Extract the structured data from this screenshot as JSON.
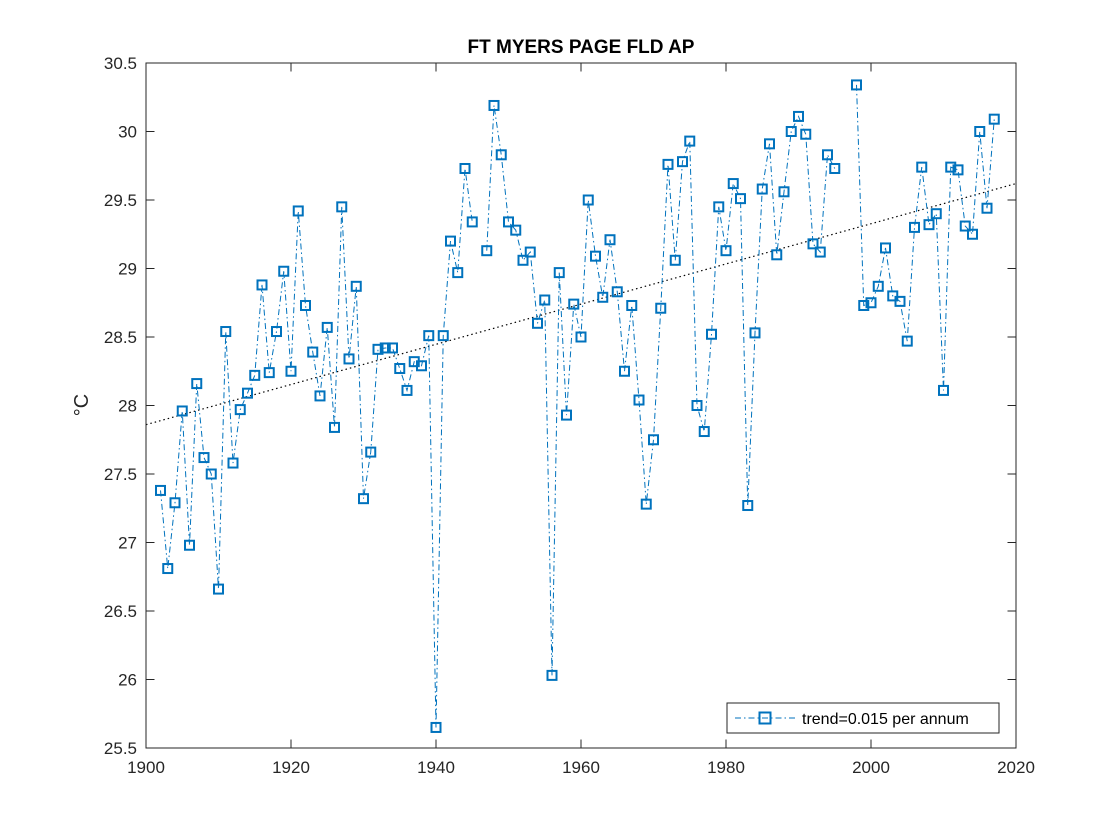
{
  "chart_data": {
    "type": "line",
    "title": "FT MYERS PAGE FLD AP",
    "xlabel": "",
    "ylabel": "°C",
    "xlim": [
      1900,
      2020
    ],
    "ylim": [
      25.5,
      30.5
    ],
    "xticks": [
      1900,
      1920,
      1940,
      1960,
      1980,
      2000,
      2020
    ],
    "yticks": [
      25.5,
      26,
      26.5,
      27,
      27.5,
      28,
      28.5,
      29,
      29.5,
      30,
      30.5
    ],
    "xtick_labels": [
      "1900",
      "1920",
      "1940",
      "1960",
      "1980",
      "2000",
      "2020"
    ],
    "ytick_labels": [
      "25.5",
      "26",
      "26.5",
      "27",
      "27.5",
      "28",
      "28.5",
      "29",
      "29.5",
      "30",
      "30.5"
    ],
    "grid": false,
    "legend_location": "bottom-right",
    "series": [
      {
        "name": "trend=0.015 per annum",
        "color": "#0072BD",
        "marker": "square",
        "linestyle": "dash-dot",
        "segments": [
          {
            "x": [
              1902,
              1903,
              1904,
              1905,
              1906,
              1907,
              1908,
              1909,
              1910,
              1911,
              1912,
              1913,
              1914,
              1915,
              1916,
              1917,
              1918,
              1919,
              1920,
              1921,
              1922,
              1923,
              1924,
              1925,
              1926,
              1927,
              1928,
              1929,
              1930,
              1931,
              1932,
              1933,
              1934,
              1935,
              1936,
              1937,
              1938,
              1939,
              1940,
              1941,
              1942,
              1943,
              1944,
              1945
            ],
            "y": [
              27.38,
              26.81,
              27.29,
              27.96,
              26.98,
              28.16,
              27.62,
              27.5,
              26.66,
              28.54,
              27.58,
              27.97,
              28.09,
              28.22,
              28.88,
              28.24,
              28.54,
              28.98,
              28.25,
              29.42,
              28.73,
              28.39,
              28.07,
              28.57,
              27.84,
              29.45,
              28.34,
              28.87,
              27.32,
              27.66,
              28.41,
              28.42,
              28.42,
              28.27,
              28.11,
              28.32,
              28.29,
              28.51,
              25.65,
              28.51,
              29.2,
              28.97,
              29.73,
              29.34
            ]
          },
          {
            "x": [
              1947,
              1948,
              1949,
              1950,
              1951,
              1952,
              1953,
              1954,
              1955,
              1956,
              1957,
              1958,
              1959,
              1960,
              1961,
              1962,
              1963,
              1964,
              1965,
              1966,
              1967,
              1968,
              1969,
              1970,
              1971,
              1972,
              1973,
              1974,
              1975,
              1976,
              1977,
              1978,
              1979,
              1980,
              1981,
              1982,
              1983,
              1984,
              1985,
              1986,
              1987,
              1988,
              1989,
              1990,
              1991,
              1992,
              1993,
              1994,
              1995
            ],
            "y": [
              29.13,
              30.19,
              29.83,
              29.34,
              29.28,
              29.06,
              29.12,
              28.6,
              28.77,
              26.03,
              28.97,
              27.93,
              28.74,
              28.5,
              29.5,
              29.09,
              28.79,
              29.21,
              28.83,
              28.25,
              28.73,
              28.04,
              27.28,
              27.75,
              28.71,
              29.76,
              29.06,
              29.78,
              29.93,
              28.0,
              27.81,
              28.52,
              29.45,
              29.13,
              29.62,
              29.51,
              27.27,
              28.53,
              29.58,
              29.91,
              29.1,
              29.56,
              30.0,
              30.11,
              29.98,
              29.18,
              29.12,
              29.83,
              29.73
            ]
          },
          {
            "x": [
              1998,
              1999,
              2000,
              2001,
              2002,
              2003,
              2004,
              2005,
              2006,
              2007,
              2008,
              2009,
              2010,
              2011,
              2012,
              2013,
              2014,
              2015,
              2016,
              2017
            ],
            "y": [
              30.34,
              28.73,
              28.75,
              28.87,
              29.15,
              28.8,
              28.76,
              28.47,
              29.3,
              29.74,
              29.32,
              29.4,
              28.11,
              29.74,
              29.72,
              29.31,
              29.25,
              30.0,
              29.44,
              30.09
            ]
          }
        ]
      }
    ],
    "trend_line": {
      "color": "#000000",
      "linestyle": "dotted",
      "x": [
        1900,
        2020
      ],
      "y": [
        27.86,
        29.62
      ]
    }
  }
}
